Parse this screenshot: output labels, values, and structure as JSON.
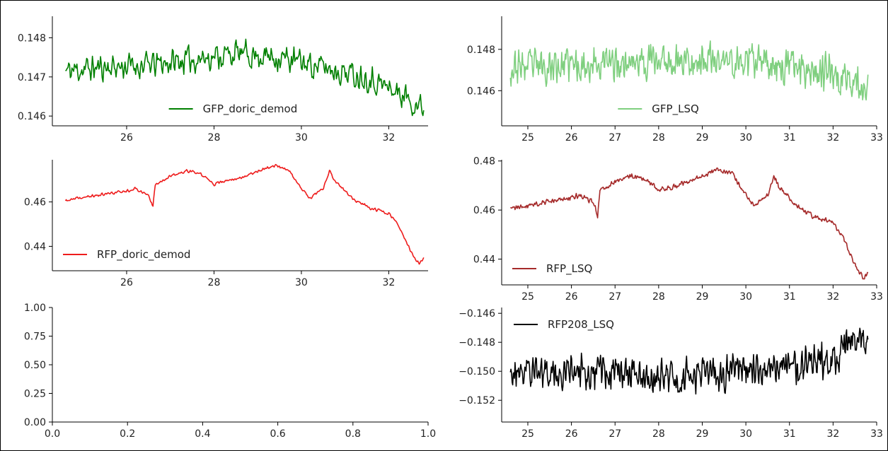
{
  "chart_data": [
    {
      "id": "gfp-doric",
      "type": "line",
      "xlim": [
        24.3,
        32.9
      ],
      "ylim": [
        145.75,
        148.55
      ],
      "xticks": [
        26,
        28,
        30,
        32
      ],
      "xtick_labels": [
        "26",
        "28",
        "30",
        "32"
      ],
      "yticks": [
        146,
        147,
        148
      ],
      "ytick_labels": [
        "0.146",
        "0.147",
        "0.148"
      ],
      "legend_position": "bottom-center",
      "series": [
        {
          "name": "GFP_doric_demod",
          "color": "#008000",
          "x_range": [
            24.6,
            32.8
          ],
          "points": 440,
          "seed": 11,
          "noise": 0.42,
          "anchors_x": [
            24.6,
            25.5,
            26.5,
            27.5,
            28.5,
            29.5,
            30.5,
            31.5,
            32.3,
            32.8
          ],
          "anchors_y": [
            147.15,
            147.25,
            147.3,
            147.45,
            147.6,
            147.5,
            147.25,
            147.0,
            146.55,
            146.2
          ]
        }
      ]
    },
    {
      "id": "gfp-lsq",
      "type": "line",
      "xlim": [
        24.4,
        33.0
      ],
      "ylim": [
        144.3,
        149.6
      ],
      "xticks": [
        25,
        26,
        27,
        28,
        29,
        30,
        31,
        32,
        33
      ],
      "xtick_labels": [
        "25",
        "26",
        "27",
        "28",
        "29",
        "30",
        "31",
        "32",
        "33"
      ],
      "yticks": [
        146,
        148
      ],
      "ytick_labels": [
        "0.146",
        "0.148"
      ],
      "legend_position": "bottom-center",
      "series": [
        {
          "name": "GFP_LSQ",
          "color": "#7fcf7f",
          "x_range": [
            24.6,
            32.8
          ],
          "points": 600,
          "seed": 23,
          "noise": 1.05,
          "anchors_x": [
            24.6,
            25.5,
            26.5,
            27.5,
            28.5,
            29.5,
            30.5,
            31.5,
            32.3,
            32.8
          ],
          "anchors_y": [
            147.1,
            147.2,
            147.3,
            147.4,
            147.5,
            147.4,
            147.3,
            147.1,
            146.6,
            146.1
          ]
        }
      ]
    },
    {
      "id": "rfp-doric",
      "type": "line",
      "xlim": [
        24.3,
        32.9
      ],
      "ylim": [
        429.0,
        479.0
      ],
      "xticks": [
        26,
        28,
        30,
        32
      ],
      "xtick_labels": [
        "26",
        "28",
        "30",
        "32"
      ],
      "yticks": [
        440,
        460
      ],
      "ytick_labels": [
        "0.44",
        "0.46"
      ],
      "legend_position": "lower-left",
      "series": [
        {
          "name": "RFP_doric_demod",
          "color": "#ee1c1c",
          "x_range": [
            24.6,
            32.8
          ],
          "points": 480,
          "seed": 37,
          "noise": 0.8,
          "anchors_x": [
            24.6,
            25.0,
            25.5,
            26.0,
            26.2,
            26.5,
            26.6,
            26.65,
            27.0,
            27.4,
            27.7,
            28.0,
            28.3,
            28.7,
            29.0,
            29.4,
            29.7,
            30.0,
            30.2,
            30.5,
            30.65,
            30.75,
            30.9,
            31.2,
            31.6,
            32.0,
            32.2,
            32.45,
            32.6,
            32.7,
            32.8
          ],
          "anchors_y": [
            460.5,
            462.0,
            463.5,
            465.0,
            466.0,
            463.0,
            458.0,
            468.0,
            471.5,
            474.0,
            472.5,
            468.0,
            469.5,
            471.5,
            474.0,
            476.5,
            474.5,
            466.0,
            461.5,
            466.0,
            474.0,
            469.5,
            467.0,
            461.0,
            457.0,
            455.0,
            450.0,
            440.0,
            434.0,
            432.5,
            434.5
          ]
        }
      ]
    },
    {
      "id": "rfp-lsq",
      "type": "line",
      "xlim": [
        24.4,
        33.0
      ],
      "ylim": [
        429.5,
        480.5
      ],
      "xticks": [
        25,
        26,
        27,
        28,
        29,
        30,
        31,
        32,
        33
      ],
      "xtick_labels": [
        "25",
        "26",
        "27",
        "28",
        "29",
        "30",
        "31",
        "32",
        "33"
      ],
      "yticks": [
        440,
        460,
        480
      ],
      "ytick_labels": [
        "0.44",
        "0.46",
        "0.48"
      ],
      "legend_position": "lower-left",
      "series": [
        {
          "name": "RFP_LSQ",
          "color": "#a52a2a",
          "x_range": [
            24.6,
            32.8
          ],
          "points": 620,
          "seed": 41,
          "noise": 1.3,
          "anchors_x": [
            24.6,
            25.0,
            25.5,
            26.0,
            26.2,
            26.5,
            26.6,
            26.65,
            27.0,
            27.4,
            27.7,
            28.0,
            28.3,
            28.7,
            29.0,
            29.4,
            29.7,
            30.0,
            30.2,
            30.5,
            30.65,
            30.75,
            30.9,
            31.2,
            31.6,
            32.0,
            32.2,
            32.45,
            32.6,
            32.7,
            32.8
          ],
          "anchors_y": [
            460.5,
            462.0,
            463.5,
            465.0,
            466.0,
            463.0,
            458.0,
            468.0,
            471.5,
            474.0,
            472.5,
            468.0,
            469.5,
            471.5,
            474.0,
            476.5,
            474.5,
            466.0,
            461.5,
            466.0,
            474.0,
            469.5,
            467.0,
            461.0,
            457.0,
            455.0,
            450.0,
            440.0,
            434.0,
            432.5,
            434.5
          ]
        }
      ]
    },
    {
      "id": "empty",
      "type": "line",
      "xlim": [
        0.0,
        1.0
      ],
      "ylim": [
        0.0,
        1.0
      ],
      "xticks": [
        0.0,
        0.2,
        0.4,
        0.6,
        0.8,
        1.0
      ],
      "xtick_labels": [
        "0.0",
        "0.2",
        "0.4",
        "0.6",
        "0.8",
        "1.0"
      ],
      "yticks": [
        0.0,
        0.25,
        0.5,
        0.75,
        1.0
      ],
      "ytick_labels": [
        "0.00",
        "0.25",
        "0.50",
        "0.75",
        "1.00"
      ],
      "legend_position": "none",
      "series": []
    },
    {
      "id": "rfp208-lsq",
      "type": "line",
      "xlim": [
        24.4,
        33.0
      ],
      "ylim": [
        -153.5,
        -145.6
      ],
      "xticks": [
        25,
        26,
        27,
        28,
        29,
        30,
        31,
        32,
        33
      ],
      "xtick_labels": [
        "25",
        "26",
        "27",
        "28",
        "29",
        "30",
        "31",
        "32",
        "33"
      ],
      "yticks": [
        -152,
        -150,
        -148,
        -146
      ],
      "ytick_labels": [
        "−0.152",
        "−0.150",
        "−0.148",
        "−0.146"
      ],
      "legend_position": "top-left",
      "series": [
        {
          "name": "RFP208_LSQ",
          "color": "#000000",
          "x_range": [
            24.6,
            32.8
          ],
          "points": 620,
          "seed": 59,
          "noise": 1.45,
          "anchors_x": [
            24.6,
            25.5,
            26.5,
            27.5,
            28.5,
            29.5,
            30.5,
            31.5,
            32.0,
            32.4,
            32.6,
            32.8
          ],
          "anchors_y": [
            -149.9,
            -150.0,
            -150.0,
            -150.2,
            -150.3,
            -150.2,
            -149.8,
            -149.5,
            -149.2,
            -148.0,
            -147.5,
            -148.5
          ]
        }
      ]
    }
  ]
}
